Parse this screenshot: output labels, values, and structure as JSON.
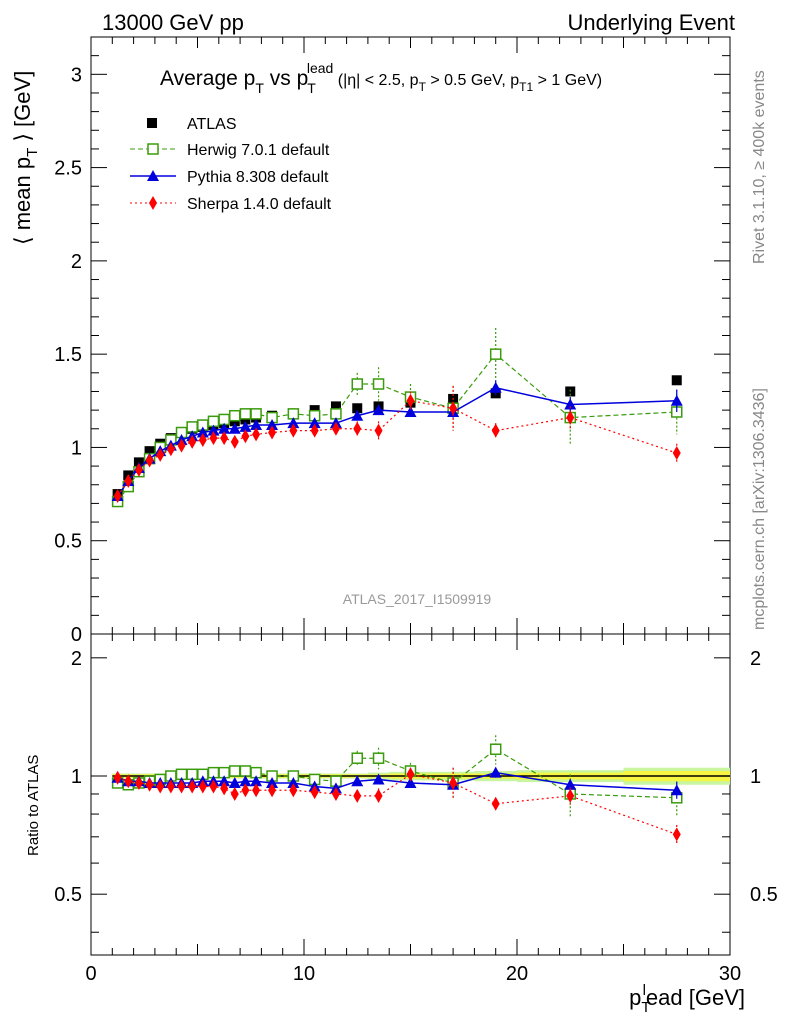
{
  "header": {
    "left": "13000 GeV pp",
    "right": "Underlying Event"
  },
  "side_text": {
    "rivet": "Rivet 3.1.10, ≥ 400k events",
    "mcplots": "mcplots.cern.ch [arXiv:1306.3436]"
  },
  "watermark": "ATLAS_2017_I1509919",
  "colors": {
    "atlas": "#000000",
    "herwig": "#3a9b0c",
    "pythia": "#0000dd",
    "sherpa": "#ff0000",
    "band_inner": "#f5f542",
    "band_outer": "#c8f5a0"
  },
  "chart_data": [
    {
      "type": "line",
      "title": "Average p_T vs p_T^lead (|η| < 2.5, p_T > 0.5 GeV, p_T1 > 1 GeV)",
      "title_parts": {
        "main": "Average p",
        "sub_t": "T",
        "vs": " vs p",
        "sup_lead": "lead",
        "cond_1": " (|η| < 2.5, p",
        "cond_2": " > 0.5 GeV, p",
        "sub_t1": "T1",
        "cond_3": " > 1 GeV)"
      },
      "ylabel": "⟨ mean p_T ⟩ [GeV]",
      "ylabel_parts": {
        "pre": "⟨ mean p",
        "sub": "T",
        "post": " ⟩ [GeV]"
      },
      "xlim": [
        0,
        30
      ],
      "ylim": [
        0,
        3.2
      ],
      "yticks": [
        0,
        0.5,
        1,
        1.5,
        2,
        2.5,
        3
      ],
      "ytick_labels": [
        "0",
        "0.5",
        "1",
        "1.5",
        "2",
        "2.5",
        "3"
      ],
      "x": [
        1.25,
        1.75,
        2.25,
        2.75,
        3.25,
        3.75,
        4.25,
        4.75,
        5.25,
        5.75,
        6.25,
        6.75,
        7.25,
        7.75,
        8.5,
        9.5,
        10.5,
        11.5,
        12.5,
        13.5,
        15,
        17,
        19,
        22.5,
        27.5
      ],
      "series": [
        {
          "name": "ATLAS",
          "marker": "square",
          "values": [
            0.75,
            0.85,
            0.92,
            0.98,
            1.02,
            1.05,
            1.08,
            1.1,
            1.11,
            1.12,
            1.13,
            1.14,
            1.15,
            1.16,
            1.17,
            1.18,
            1.2,
            1.22,
            1.21,
            1.22,
            1.24,
            1.26,
            1.29,
            1.3,
            1.36
          ],
          "errors": [
            0.01,
            0.01,
            0.01,
            0.01,
            0.01,
            0.01,
            0.01,
            0.01,
            0.01,
            0.01,
            0.01,
            0.01,
            0.01,
            0.01,
            0.01,
            0.01,
            0.01,
            0.01,
            0.01,
            0.01,
            0.02,
            0.02,
            0.02,
            0.02,
            0.02
          ]
        },
        {
          "name": "Herwig 7.0.1 default",
          "marker": "open-square",
          "values": [
            0.71,
            0.79,
            0.87,
            0.94,
            1.0,
            1.04,
            1.08,
            1.11,
            1.12,
            1.14,
            1.15,
            1.17,
            1.18,
            1.18,
            1.16,
            1.18,
            1.17,
            1.18,
            1.34,
            1.34,
            1.27,
            1.21,
            1.5,
            1.16,
            1.19
          ],
          "errors": [
            0.01,
            0.01,
            0.01,
            0.01,
            0.01,
            0.01,
            0.01,
            0.01,
            0.01,
            0.01,
            0.01,
            0.01,
            0.01,
            0.01,
            0.02,
            0.02,
            0.02,
            0.03,
            0.06,
            0.09,
            0.07,
            0.12,
            0.14,
            0.15,
            0.12
          ]
        },
        {
          "name": "Pythia 8.308 default",
          "marker": "triangle",
          "values": [
            0.74,
            0.82,
            0.89,
            0.94,
            0.98,
            1.01,
            1.04,
            1.06,
            1.08,
            1.09,
            1.1,
            1.1,
            1.11,
            1.12,
            1.12,
            1.13,
            1.13,
            1.13,
            1.17,
            1.2,
            1.19,
            1.19,
            1.32,
            1.23,
            1.25
          ],
          "errors": [
            0.01,
            0.01,
            0.01,
            0.01,
            0.01,
            0.01,
            0.01,
            0.01,
            0.01,
            0.01,
            0.01,
            0.01,
            0.01,
            0.01,
            0.01,
            0.01,
            0.01,
            0.01,
            0.02,
            0.02,
            0.02,
            0.03,
            0.04,
            0.04,
            0.06
          ]
        },
        {
          "name": "Sherpa 1.4.0 default",
          "marker": "diamond",
          "values": [
            0.74,
            0.82,
            0.88,
            0.93,
            0.96,
            0.99,
            1.01,
            1.03,
            1.04,
            1.05,
            1.05,
            1.03,
            1.06,
            1.07,
            1.08,
            1.09,
            1.09,
            1.1,
            1.1,
            1.09,
            1.25,
            1.21,
            1.09,
            1.16,
            0.97
          ],
          "errors": [
            0.01,
            0.01,
            0.01,
            0.01,
            0.01,
            0.01,
            0.01,
            0.01,
            0.01,
            0.01,
            0.01,
            0.01,
            0.01,
            0.01,
            0.02,
            0.02,
            0.02,
            0.03,
            0.04,
            0.05,
            0.05,
            0.12,
            0.04,
            0.06,
            0.05
          ]
        }
      ],
      "legend": [
        "ATLAS",
        "Herwig 7.0.1 default",
        "Pythia 8.308 default",
        "Sherpa 1.4.0 default"
      ],
      "legend_position": "top-left"
    },
    {
      "type": "line",
      "title": "Ratio to ATLAS",
      "ylabel": "Ratio to ATLAS",
      "xlabel": "p_T^lead [GeV]",
      "xlabel_parts": {
        "pre": "p",
        "sub": "T",
        "sup": "l",
        "post": "ead [GeV]"
      },
      "xlim": [
        0,
        30
      ],
      "ylim": [
        0.35,
        2.3
      ],
      "yticks": [
        0.5,
        1,
        2
      ],
      "ytick_labels": [
        "0.5",
        "1",
        "2"
      ],
      "xticks": [
        0,
        10,
        20,
        30
      ],
      "xtick_labels": [
        "0",
        "10",
        "20",
        "30"
      ],
      "x": [
        1.25,
        1.75,
        2.25,
        2.75,
        3.25,
        3.75,
        4.25,
        4.75,
        5.25,
        5.75,
        6.25,
        6.75,
        7.25,
        7.75,
        8.5,
        9.5,
        10.5,
        11.5,
        12.5,
        13.5,
        15,
        17,
        19,
        22.5,
        27.5
      ],
      "band": {
        "x": [
          1,
          1.5,
          2,
          2.5,
          3,
          3.5,
          4,
          4.5,
          5,
          5.5,
          6,
          6.5,
          7,
          7.5,
          8,
          9,
          10,
          11,
          12,
          13,
          14,
          16,
          18,
          20,
          25,
          30
        ],
        "inner": [
          0.01,
          0.01,
          0.01,
          0.01,
          0.01,
          0.01,
          0.01,
          0.01,
          0.01,
          0.01,
          0.01,
          0.01,
          0.01,
          0.01,
          0.01,
          0.01,
          0.01,
          0.01,
          0.01,
          0.01,
          0.015,
          0.015,
          0.015,
          0.02,
          0.03
        ],
        "outer": [
          0.015,
          0.015,
          0.015,
          0.015,
          0.015,
          0.015,
          0.015,
          0.015,
          0.015,
          0.015,
          0.015,
          0.015,
          0.015,
          0.015,
          0.015,
          0.015,
          0.015,
          0.015,
          0.015,
          0.02,
          0.025,
          0.025,
          0.03,
          0.035,
          0.05
        ]
      },
      "series": [
        {
          "name": "Herwig 7.0.1 default",
          "marker": "open-square",
          "values": [
            0.96,
            0.95,
            0.96,
            0.97,
            0.98,
            1.0,
            1.01,
            1.01,
            1.01,
            1.02,
            1.02,
            1.03,
            1.03,
            1.02,
            1.0,
            1.0,
            0.98,
            0.97,
            1.11,
            1.11,
            1.03,
            0.96,
            1.17,
            0.9,
            0.88
          ],
          "errors": [
            0.01,
            0.01,
            0.01,
            0.01,
            0.01,
            0.01,
            0.01,
            0.01,
            0.01,
            0.01,
            0.01,
            0.01,
            0.01,
            0.01,
            0.015,
            0.015,
            0.02,
            0.025,
            0.05,
            0.07,
            0.05,
            0.09,
            0.1,
            0.11,
            0.09
          ]
        },
        {
          "name": "Pythia 8.308 default",
          "marker": "triangle",
          "values": [
            0.99,
            0.97,
            0.97,
            0.96,
            0.96,
            0.96,
            0.96,
            0.96,
            0.97,
            0.97,
            0.97,
            0.96,
            0.97,
            0.97,
            0.96,
            0.96,
            0.94,
            0.93,
            0.97,
            0.98,
            0.96,
            0.95,
            1.02,
            0.95,
            0.92
          ],
          "errors": [
            0.01,
            0.01,
            0.01,
            0.01,
            0.01,
            0.01,
            0.01,
            0.01,
            0.01,
            0.01,
            0.01,
            0.01,
            0.01,
            0.01,
            0.01,
            0.01,
            0.01,
            0.01,
            0.02,
            0.02,
            0.02,
            0.025,
            0.03,
            0.03,
            0.045
          ]
        },
        {
          "name": "Sherpa 1.4.0 default",
          "marker": "diamond",
          "values": [
            0.99,
            0.97,
            0.96,
            0.95,
            0.94,
            0.94,
            0.94,
            0.94,
            0.94,
            0.94,
            0.93,
            0.9,
            0.92,
            0.92,
            0.92,
            0.92,
            0.91,
            0.9,
            0.89,
            0.89,
            1.01,
            0.96,
            0.85,
            0.89,
            0.71
          ],
          "errors": [
            0.01,
            0.01,
            0.01,
            0.01,
            0.01,
            0.01,
            0.01,
            0.01,
            0.01,
            0.01,
            0.01,
            0.01,
            0.01,
            0.01,
            0.015,
            0.015,
            0.02,
            0.025,
            0.03,
            0.04,
            0.04,
            0.09,
            0.03,
            0.045,
            0.04
          ]
        }
      ]
    }
  ]
}
